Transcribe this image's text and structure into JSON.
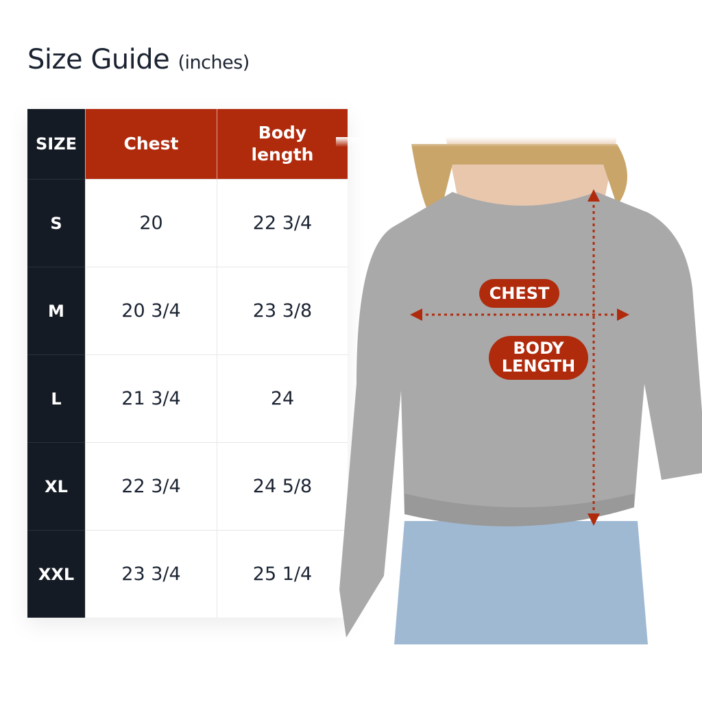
{
  "title": {
    "main": "Size Guide",
    "unit": "(inches)"
  },
  "table": {
    "headers": [
      "SIZE",
      "Chest",
      "Body length"
    ],
    "rows": [
      {
        "size": "S",
        "chest": "20",
        "body_length": "22 3/4"
      },
      {
        "size": "M",
        "chest": "20 3/4",
        "body_length": "23 3/8"
      },
      {
        "size": "L",
        "chest": "21 3/4",
        "body_length": "24"
      },
      {
        "size": "XL",
        "chest": "22 3/4",
        "body_length": "24 5/8"
      },
      {
        "size": "XXL",
        "chest": "23 3/4",
        "body_length": "25 1/4"
      }
    ]
  },
  "diagram": {
    "chest_label": "CHEST",
    "body_length_label_1": "BODY",
    "body_length_label_2": "LENGTH"
  },
  "colors": {
    "accent": "#b02a0c",
    "dark": "#151b24",
    "text": "#1b2332"
  }
}
